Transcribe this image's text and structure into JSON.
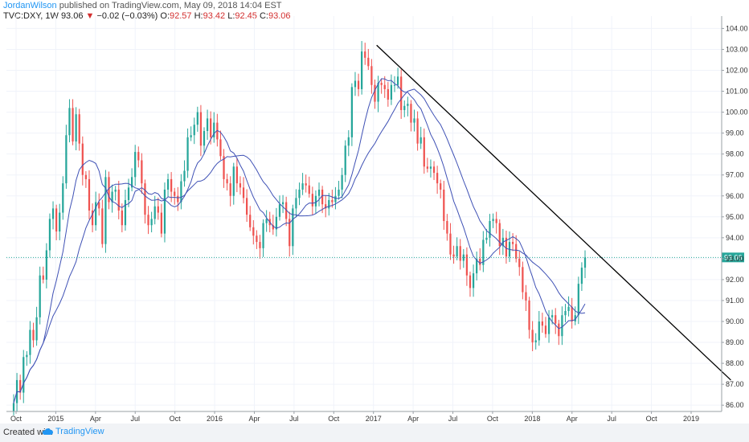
{
  "header": {
    "author": "JordanWilson",
    "published": "published on TradingView.com, May 09, 2018 14:04 EST",
    "symbol_line": "TVC:DXY, 1W",
    "last": "93.06",
    "change": "−0.02 (−0.03%)",
    "o_label": "O:",
    "o_value": "92.57",
    "h_label": "H:",
    "h_value": "93.42",
    "l_label": "L:",
    "l_value": "92.45",
    "c_label": "C:",
    "c_value": "93.06"
  },
  "footer": {
    "created": "Created with",
    "brand": "TradingView"
  },
  "colors": {
    "up": "#26a69a",
    "down": "#ef5350",
    "ma": "#3f51b5",
    "trendline": "#000000",
    "price_line": "#26a69a"
  },
  "chart_data": {
    "type": "candlestick",
    "symbol": "TVC:DXY",
    "interval": "1W",
    "ylim": [
      85.7,
      104.4
    ],
    "y_ticks": [
      86,
      87,
      88,
      89,
      90,
      91,
      92,
      93,
      94,
      95,
      96,
      97,
      98,
      99,
      100,
      101,
      102,
      103,
      104
    ],
    "y_tick_labels": [
      "86.00",
      "87.00",
      "88.00",
      "89.00",
      "90.00",
      "91.00",
      "92.00",
      "93.00",
      "94.00",
      "95.00",
      "96.00",
      "97.00",
      "98.00",
      "99.00",
      "100.00",
      "101.00",
      "102.00",
      "103.00",
      "104.00"
    ],
    "x_tick_labels": [
      "Oct",
      "2015",
      "Apr",
      "Jul",
      "Oct",
      "2016",
      "Apr",
      "Jul",
      "Oct",
      "2017",
      "Apr",
      "Jul",
      "Oct",
      "2018",
      "Apr",
      "Jul",
      "Oct",
      "2019"
    ],
    "x_tick_positions": [
      0.0,
      0.25,
      0.5,
      0.75,
      1.0,
      1.25,
      1.5,
      1.75,
      2.0,
      2.25,
      2.5,
      2.75,
      3.0,
      3.25,
      3.5,
      3.75,
      4.0,
      4.25
    ],
    "last_price": "93.06",
    "closes": [
      86.1,
      87.2,
      86.6,
      88.3,
      88.4,
      89.6,
      89.1,
      90.2,
      92.2,
      92.0,
      93.4,
      94.9,
      95.4,
      94.3,
      95.2,
      96.6,
      98.9,
      100.2,
      98.6,
      99.9,
      98.5,
      97.0,
      96.8,
      95.3,
      94.6,
      95.7,
      95.4,
      93.7,
      96.9,
      95.7,
      96.2,
      96.3,
      95.3,
      94.6,
      95.8,
      96.4,
      96.9,
      98.1,
      97.7,
      96.6,
      95.1,
      94.6,
      94.9,
      95.5,
      95.2,
      94.2,
      96.3,
      96.8,
      96.2,
      96.0,
      95.7,
      96.7,
      97.2,
      98.8,
      98.9,
      99.4,
      100.0,
      98.4,
      99.1,
      99.7,
      98.8,
      99.5,
      98.7,
      97.9,
      96.8,
      96.6,
      96.0,
      97.4,
      96.6,
      96.4,
      95.9,
      95.1,
      94.5,
      94.1,
      93.8,
      93.5,
      94.7,
      94.9,
      94.6,
      94.4,
      95.0,
      95.6,
      95.7,
      94.9,
      93.6,
      95.4,
      95.9,
      96.3,
      96.6,
      96.5,
      96.1,
      95.5,
      96.0,
      96.3,
      95.6,
      95.4,
      95.8,
      95.7,
      96.0,
      96.3,
      97.0,
      98.4,
      98.8,
      101.2,
      101.5,
      101.1,
      102.9,
      102.6,
      102.2,
      101.3,
      100.5,
      101.4,
      101.3,
      101.1,
      100.6,
      101.3,
      101.3,
      101.7,
      100.1,
      100.3,
      100.4,
      99.5,
      99.7,
      98.5,
      98.8,
      97.4,
      97.3,
      97.4,
      97.1,
      96.6,
      96.3,
      94.8,
      94.2,
      93.2,
      93.1,
      93.6,
      92.9,
      93.2,
      92.2,
      91.6,
      92.3,
      93.0,
      92.7,
      93.9,
      94.0,
      94.8,
      94.9,
      94.7,
      93.6,
      94.0,
      93.1,
      93.8,
      93.7,
      93.0,
      92.6,
      91.4,
      91.0,
      89.6,
      89.0,
      89.1,
      90.0,
      89.8,
      89.4,
      90.2,
      90.3,
      89.9,
      89.3,
      90.3,
      90.5,
      90.7,
      90.0,
      90.3,
      91.8,
      92.57,
      93.06
    ],
    "trendline": {
      "from": {
        "x": 2.27,
        "y": 103.2
      },
      "to": {
        "x": 4.5,
        "y": 87.2
      }
    },
    "moving_averages": [
      {
        "period": 10
      },
      {
        "period": 20
      }
    ],
    "horizontal_line": 93.06,
    "grid": true,
    "legend": "none"
  }
}
